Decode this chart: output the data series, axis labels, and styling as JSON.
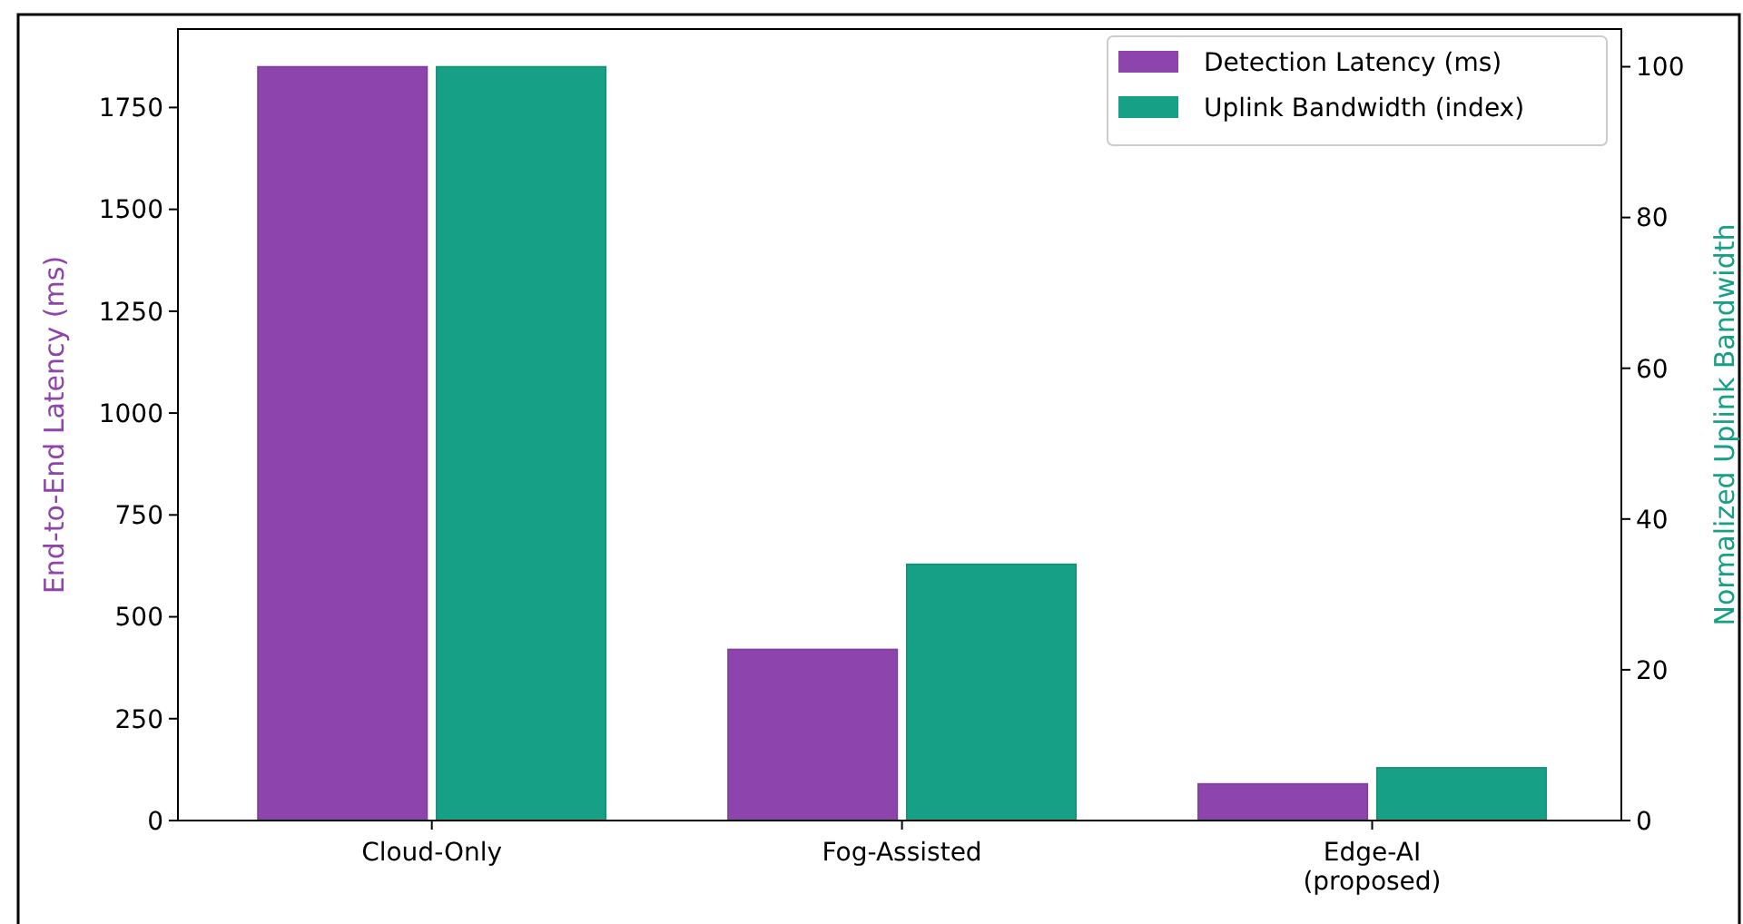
{
  "chart_data": {
    "type": "bar",
    "categories": [
      "Cloud-Only",
      "Fog-Assisted",
      "Edge-AI\n(proposed)"
    ],
    "ylabel": "End-to-End Latency (ms)",
    "y2label": "Normalized Uplink Bandwidth",
    "ylim": [
      0,
      1942.5
    ],
    "yticks": [
      0,
      250,
      500,
      750,
      1000,
      1250,
      1500,
      1750
    ],
    "y2lim": [
      0,
      105
    ],
    "y2ticks": [
      0,
      20,
      40,
      60,
      80,
      100
    ],
    "series": [
      {
        "name": "Detection Latency (ms)",
        "color": "#8e44ad",
        "values": [
          1850,
          420,
          90
        ]
      },
      {
        "name": "Uplink Bandwidth (index)",
        "color": "#16a085",
        "values": [
          100,
          34,
          7
        ],
        "axis": "y2"
      }
    ],
    "legend": "top right",
    "grid": false
  }
}
